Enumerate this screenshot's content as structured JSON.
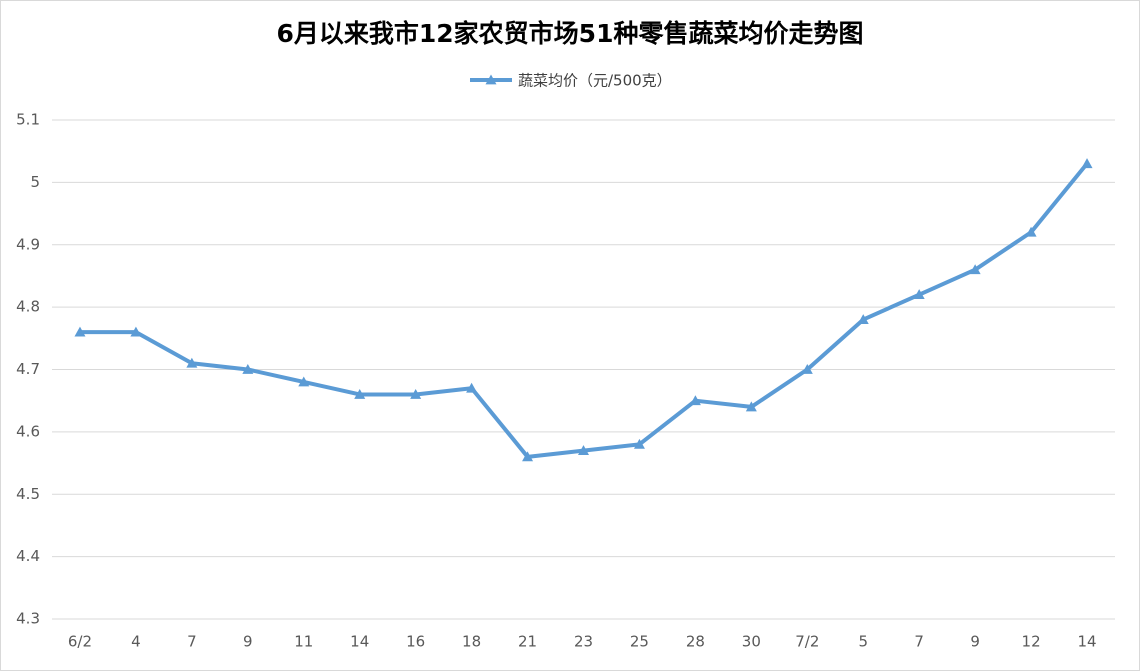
{
  "chart_data": {
    "type": "line",
    "title": "6月以来我市12家农贸市场51种零售蔬菜均价走势图",
    "categories": [
      "6/2",
      "4",
      "7",
      "9",
      "11",
      "14",
      "16",
      "18",
      "21",
      "23",
      "25",
      "28",
      "30",
      "7/2",
      "5",
      "7",
      "9",
      "12",
      "14"
    ],
    "series": [
      {
        "name": "蔬菜均价（元/500克）",
        "color": "#5b9bd5",
        "values": [
          4.76,
          4.76,
          4.71,
          4.7,
          4.68,
          4.66,
          4.66,
          4.67,
          4.56,
          4.57,
          4.58,
          4.65,
          4.64,
          4.7,
          4.78,
          4.82,
          4.86,
          4.92,
          5.03
        ]
      }
    ],
    "ylim": [
      4.3,
      5.1
    ],
    "yticks": [
      4.3,
      4.4,
      4.5,
      4.6,
      4.7,
      4.8,
      4.9,
      5,
      5.1
    ],
    "grid": true,
    "legend": "top"
  }
}
